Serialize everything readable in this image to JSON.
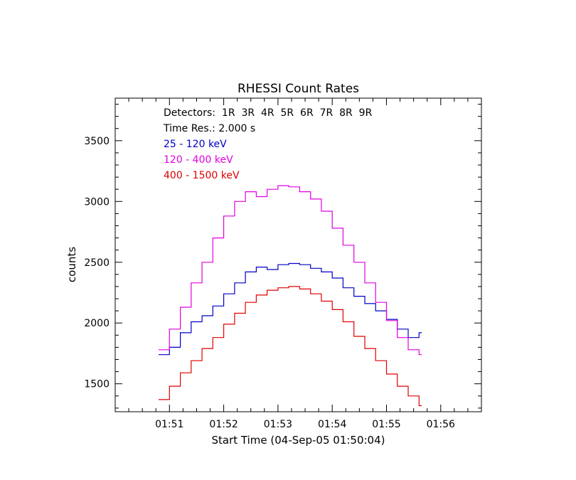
{
  "chart_data": {
    "type": "line",
    "title": "RHESSI Count Rates",
    "xlabel": "Start Time (04-Sep-05 01:50:04)",
    "ylabel": "counts",
    "xlim": [
      50.0,
      56.75
    ],
    "ylim": [
      1270,
      3850
    ],
    "x_ticks": [
      {
        "value": 51,
        "label": "01:51"
      },
      {
        "value": 52,
        "label": "01:52"
      },
      {
        "value": 53,
        "label": "01:53"
      },
      {
        "value": 54,
        "label": "01:54"
      },
      {
        "value": 55,
        "label": "01:55"
      },
      {
        "value": 56,
        "label": "01:56"
      }
    ],
    "y_ticks": [
      {
        "value": 1500,
        "label": "1500"
      },
      {
        "value": 2000,
        "label": "2000"
      },
      {
        "value": 2500,
        "label": "2500"
      },
      {
        "value": 3000,
        "label": "3000"
      },
      {
        "value": 3500,
        "label": "3500"
      }
    ],
    "annotations": {
      "detectors": "Detectors:  1R  3R  4R  5R  6R  7R  8R  9R",
      "time_res": "Time Res.: 2.000 s"
    },
    "grid": false,
    "legend_position": "top-left",
    "series": [
      {
        "name": " 25 - 120 keV",
        "color": "#0000c8",
        "x": [
          50.8,
          51.0,
          51.2,
          51.4,
          51.6,
          51.8,
          52.0,
          52.2,
          52.4,
          52.6,
          52.8,
          53.0,
          53.2,
          53.4,
          53.6,
          53.8,
          54.0,
          54.2,
          54.4,
          54.6,
          54.8,
          55.0,
          55.2,
          55.4,
          55.6
        ],
        "values": [
          1740,
          1800,
          1920,
          2010,
          2060,
          2140,
          2240,
          2330,
          2420,
          2460,
          2440,
          2480,
          2490,
          2480,
          2450,
          2420,
          2370,
          2290,
          2220,
          2160,
          2100,
          2030,
          1950,
          1880,
          1920
        ]
      },
      {
        "name": "120 - 400 keV",
        "color": "#e000e0",
        "x": [
          50.8,
          51.0,
          51.2,
          51.4,
          51.6,
          51.8,
          52.0,
          52.2,
          52.4,
          52.6,
          52.8,
          53.0,
          53.2,
          53.4,
          53.6,
          53.8,
          54.0,
          54.2,
          54.4,
          54.6,
          54.8,
          55.0,
          55.2,
          55.4,
          55.6
        ],
        "values": [
          1780,
          1950,
          2130,
          2330,
          2500,
          2700,
          2880,
          3000,
          3080,
          3040,
          3100,
          3130,
          3120,
          3080,
          3020,
          2920,
          2780,
          2640,
          2500,
          2330,
          2170,
          2020,
          1880,
          1780,
          1740
        ]
      },
      {
        "name": "400 - 1500 keV",
        "color": "#e00000",
        "x": [
          50.8,
          51.0,
          51.2,
          51.4,
          51.6,
          51.8,
          52.0,
          52.2,
          52.4,
          52.6,
          52.8,
          53.0,
          53.2,
          53.4,
          53.6,
          53.8,
          54.0,
          54.2,
          54.4,
          54.6,
          54.8,
          55.0,
          55.2,
          55.4,
          55.6
        ],
        "values": [
          1370,
          1480,
          1590,
          1690,
          1790,
          1880,
          1990,
          2080,
          2170,
          2230,
          2270,
          2290,
          2300,
          2280,
          2240,
          2180,
          2110,
          2010,
          1890,
          1790,
          1690,
          1580,
          1480,
          1400,
          1320
        ]
      }
    ]
  }
}
